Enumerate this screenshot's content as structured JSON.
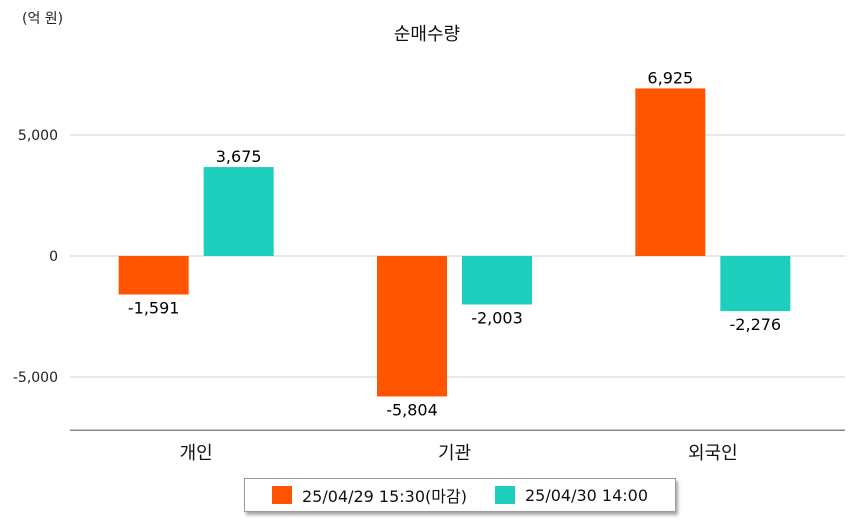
{
  "unit_label": "(억 원)",
  "chart_data": {
    "type": "bar",
    "title": "순매수량",
    "categories": [
      "개인",
      "기관",
      "외국인"
    ],
    "series": [
      {
        "name": "25/04/29 15:30(마감)",
        "color": "#FF5500",
        "values": [
          -1591,
          -5804,
          6925
        ],
        "labels": [
          "-1,591",
          "-5,804",
          "6,925"
        ]
      },
      {
        "name": "25/04/30 14:00",
        "color": "#1ECEBC",
        "values": [
          3675,
          -2003,
          -2276
        ],
        "labels": [
          "3,675",
          "-2,003",
          "-2,276"
        ]
      }
    ],
    "yticks": [
      5000,
      0,
      -5000
    ],
    "ytick_labels": [
      "5,000",
      "0",
      "-5,000"
    ],
    "ylim": [
      -7200,
      8200
    ],
    "grid": true,
    "legend_position": "bottom"
  }
}
